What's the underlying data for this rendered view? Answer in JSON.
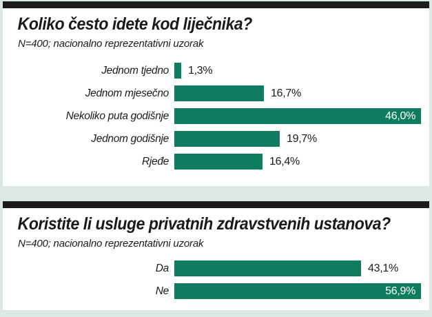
{
  "page": {
    "background_color": "#dce9e3",
    "panel_color": "#ffffff",
    "rule_color": "#1b1b1b",
    "bar_color": "#0e7d5f",
    "text_color": "#1a1a1a"
  },
  "charts": [
    {
      "title": "Koliko često idete kod liječnika?",
      "subtitle": "N=400; nacionalno reprezentativni uzorak",
      "max_pct": 46.0,
      "rows": [
        {
          "label": "Jednom tjedno",
          "value": "1,3%",
          "pct": 1.3,
          "value_inside": false
        },
        {
          "label": "Jednom mjesečno",
          "value": "16,7%",
          "pct": 16.7,
          "value_inside": false
        },
        {
          "label": "Nekoliko puta godišnje",
          "value": "46,0%",
          "pct": 46.0,
          "value_inside": true
        },
        {
          "label": "Jednom godišnje",
          "value": "19,7%",
          "pct": 19.7,
          "value_inside": false
        },
        {
          "label": "Rjeđe",
          "value": "16,4%",
          "pct": 16.4,
          "value_inside": false
        }
      ]
    },
    {
      "title": "Koristite li usluge privatnih zdravstvenih ustanova?",
      "subtitle": "N=400; nacionalno reprezentativni uzorak",
      "max_pct": 56.9,
      "rows": [
        {
          "label": "Da",
          "value": "43,1%",
          "pct": 43.1,
          "value_inside": false
        },
        {
          "label": "Ne",
          "value": "56,9%",
          "pct": 56.9,
          "value_inside": true
        }
      ]
    }
  ],
  "chart_data": [
    {
      "type": "bar",
      "orientation": "horizontal",
      "title": "Koliko često idete kod liječnika?",
      "subtitle": "N=400; nacionalno reprezentativni uzorak",
      "categories": [
        "Jednom tjedno",
        "Jednom mjesečno",
        "Nekoliko puta godišnje",
        "Jednom godišnje",
        "Rjeđe"
      ],
      "values": [
        1.3,
        16.7,
        46.0,
        19.7,
        16.4
      ],
      "value_labels": [
        "1,3%",
        "16,7%",
        "46,0%",
        "19,7%",
        "16,4%"
      ],
      "unit": "%",
      "bar_color": "#0e7d5f",
      "xlim": [
        0,
        46.0
      ],
      "grid": false,
      "legend": false,
      "value_label_position": "end-of-bar, inside when bar is longest"
    },
    {
      "type": "bar",
      "orientation": "horizontal",
      "title": "Koristite li usluge privatnih zdravstvenih ustanova?",
      "subtitle": "N=400; nacionalno reprezentativni uzorak",
      "categories": [
        "Da",
        "Ne"
      ],
      "values": [
        43.1,
        56.9
      ],
      "value_labels": [
        "43,1%",
        "56,9%"
      ],
      "unit": "%",
      "bar_color": "#0e7d5f",
      "xlim": [
        0,
        56.9
      ],
      "grid": false,
      "legend": false,
      "value_label_position": "end-of-bar, inside when bar is longest"
    }
  ]
}
